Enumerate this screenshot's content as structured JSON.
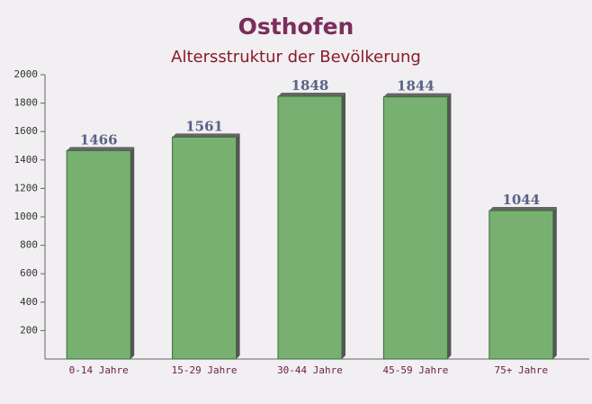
{
  "chart_data": {
    "type": "bar",
    "title": "Osthofen",
    "subtitle": "Altersstruktur der Bevölkerung",
    "categories": [
      "0-14 Jahre",
      "15-29 Jahre",
      "30-44 Jahre",
      "45-59 Jahre",
      "75+ Jahre"
    ],
    "values": [
      1466,
      1561,
      1848,
      1844,
      1044
    ],
    "color": "#6aa864",
    "ylim": [
      0,
      2000
    ],
    "yticks": [
      200,
      400,
      600,
      800,
      1000,
      1200,
      1400,
      1600,
      1800,
      2000
    ],
    "grid": false
  }
}
